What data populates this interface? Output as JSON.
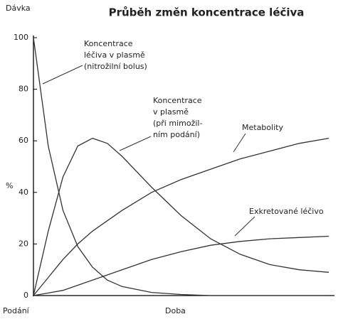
{
  "chart_data": {
    "type": "line",
    "title": "Průběh změn koncentrace léčiva",
    "y_label_top": "Dávka",
    "y_label": "%",
    "x_label_start": "Podání",
    "x_label": "Doba",
    "x": [
      0,
      0.5,
      1,
      1.5,
      2,
      2.5,
      3,
      4,
      5,
      6,
      7,
      8,
      9,
      10
    ],
    "xlim": [
      0,
      10
    ],
    "ylim": [
      0,
      100
    ],
    "yticks": [
      0,
      20,
      40,
      60,
      80,
      100
    ],
    "series": [
      {
        "color": "#333333",
        "values": [
          100,
          58,
          33,
          19,
          11,
          6,
          3.5,
          1.2,
          0.4,
          0,
          0,
          0,
          0,
          0
        ]
      },
      {
        "color": "#333333",
        "values": [
          0,
          25,
          46,
          58,
          61,
          59,
          54,
          42,
          31,
          22,
          16,
          12,
          10,
          9
        ]
      },
      {
        "color": "#333333",
        "values": [
          0,
          7,
          14,
          20,
          25,
          29,
          33,
          40,
          45,
          49,
          53,
          56,
          59,
          61
        ]
      },
      {
        "color": "#333333",
        "values": [
          0,
          1,
          2,
          4,
          6,
          8,
          10,
          14,
          17,
          19.5,
          21,
          22,
          22.5,
          23
        ]
      }
    ],
    "annotations": [
      {
        "text": [
          "Koncentrace",
          "léčiva v plasmě",
          "(nitrožilní bolus)"
        ]
      },
      {
        "text": [
          "Koncentrace",
          "v plasmě",
          "(při mimožil-",
          "ním podání)"
        ]
      },
      {
        "text": [
          "Metabolity"
        ]
      },
      {
        "text": [
          "Exkretované léčivo"
        ]
      }
    ]
  }
}
